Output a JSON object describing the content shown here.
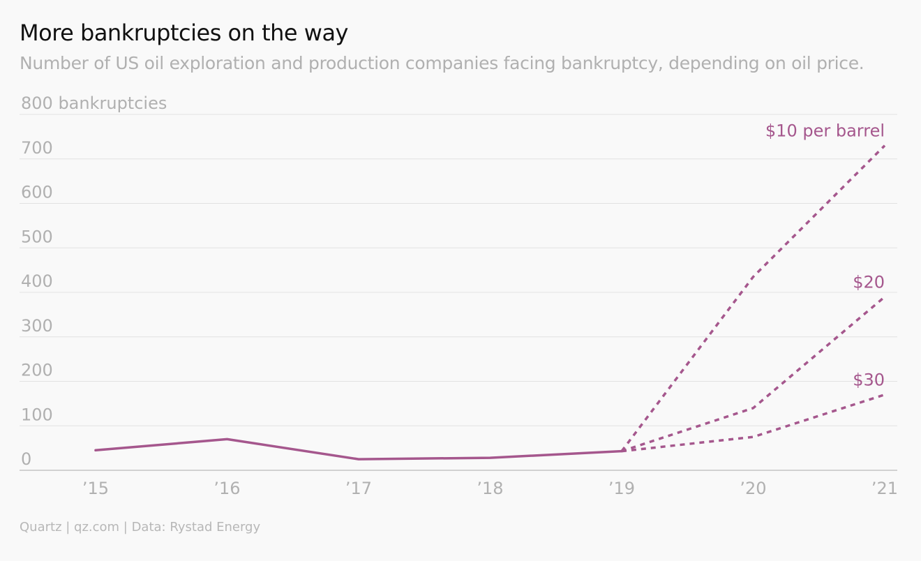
{
  "header": {
    "title": "More bankruptcies on the way",
    "subtitle": "Number of US oil exploration and production companies facing bankruptcy, depending on oil price."
  },
  "footer": {
    "source": "Quartz | qz.com | Data: Rystad Energy"
  },
  "colors": {
    "series": "#a5578d",
    "grid": "#e2e2e2",
    "axis": "#c4c4c4",
    "tick_text": "#b0b0b0"
  },
  "chart_data": {
    "type": "line",
    "title": "More bankruptcies on the way",
    "subtitle": "Number of US oil exploration and production companies facing bankruptcy, depending on oil price.",
    "x": [
      "’15",
      "’16",
      "’17",
      "’18",
      "’19",
      "’20",
      "’21"
    ],
    "ylim": [
      0,
      800
    ],
    "yticks": [
      0,
      100,
      200,
      300,
      400,
      500,
      600,
      700,
      800
    ],
    "ytick_labels": [
      "0",
      "100",
      "200",
      "300",
      "400",
      "500",
      "600",
      "700",
      "800 bankruptcies"
    ],
    "grid": true,
    "series": [
      {
        "name": "",
        "style": "solid",
        "values": [
          45,
          70,
          25,
          28,
          43,
          null,
          null
        ]
      },
      {
        "name": "$10 per barrel",
        "style": "dashed",
        "values": [
          null,
          null,
          null,
          null,
          43,
          435,
          730
        ]
      },
      {
        "name": "$20",
        "style": "dashed",
        "values": [
          null,
          null,
          null,
          null,
          43,
          140,
          390
        ]
      },
      {
        "name": "$30",
        "style": "dashed",
        "values": [
          null,
          null,
          null,
          null,
          43,
          75,
          170
        ]
      }
    ]
  }
}
